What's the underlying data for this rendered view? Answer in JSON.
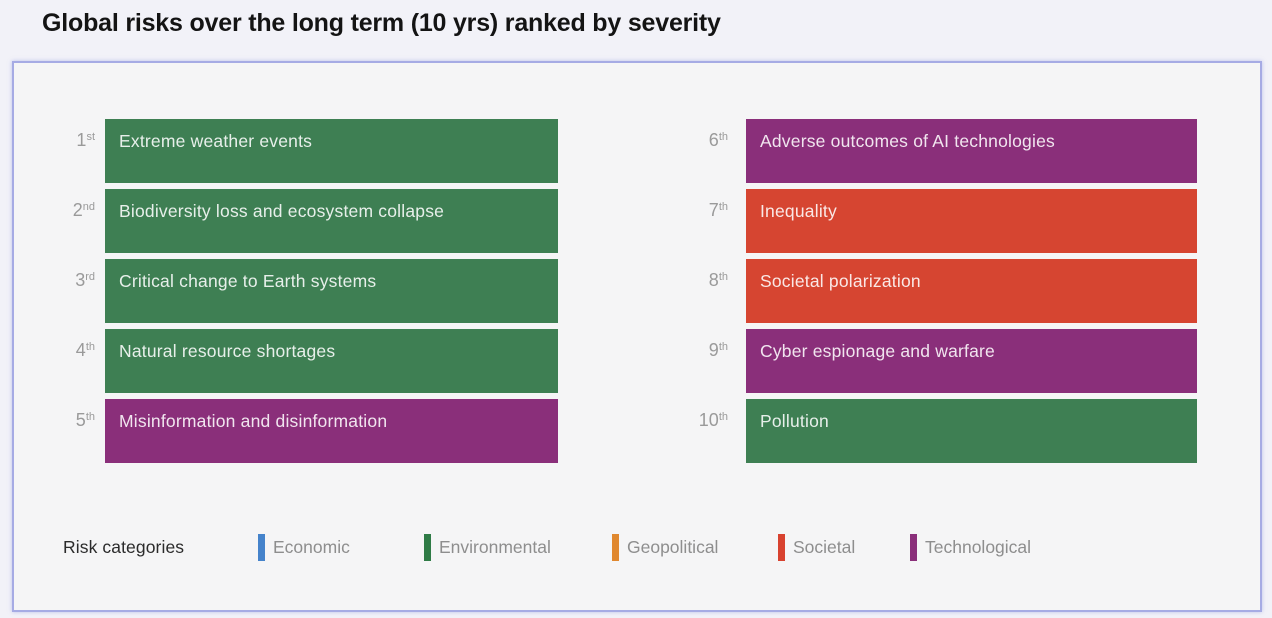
{
  "chart_data": {
    "type": "table",
    "title": "Global risks over the long term (10 yrs) ranked by severity",
    "columns": [
      "rank",
      "risk",
      "category"
    ],
    "rows": [
      {
        "rank": 1,
        "suffix": "st",
        "risk": "Extreme weather events",
        "category": "Environmental",
        "color": "#3e7f53"
      },
      {
        "rank": 2,
        "suffix": "nd",
        "risk": "Biodiversity loss and ecosystem collapse",
        "category": "Environmental",
        "color": "#3e7f53"
      },
      {
        "rank": 3,
        "suffix": "rd",
        "risk": "Critical change to Earth systems",
        "category": "Environmental",
        "color": "#3e7f53"
      },
      {
        "rank": 4,
        "suffix": "th",
        "risk": "Natural resource shortages",
        "category": "Environmental",
        "color": "#3e7f53"
      },
      {
        "rank": 5,
        "suffix": "th",
        "risk": "Misinformation and disinformation",
        "category": "Technological",
        "color": "#8a2f7a"
      },
      {
        "rank": 6,
        "suffix": "th",
        "risk": "Adverse outcomes of AI technologies",
        "category": "Technological",
        "color": "#8a2f7a"
      },
      {
        "rank": 7,
        "suffix": "th",
        "risk": "Inequality",
        "category": "Societal",
        "color": "#d64531"
      },
      {
        "rank": 8,
        "suffix": "th",
        "risk": "Societal polarization",
        "category": "Societal",
        "color": "#d64531"
      },
      {
        "rank": 9,
        "suffix": "th",
        "risk": "Cyber espionage and warfare",
        "category": "Technological",
        "color": "#8a2f7a"
      },
      {
        "rank": 10,
        "suffix": "th",
        "risk": "Pollution",
        "category": "Environmental",
        "color": "#3e7f53"
      }
    ],
    "legend": {
      "title": "Risk categories",
      "items": [
        {
          "label": "Economic",
          "color": "#4583cb"
        },
        {
          "label": "Environmental",
          "color": "#2f7b46"
        },
        {
          "label": "Geopolitical",
          "color": "#e0882f"
        },
        {
          "label": "Societal",
          "color": "#d8422f"
        },
        {
          "label": "Technological",
          "color": "#8a2f7a"
        }
      ]
    },
    "layout_hints": {
      "left_column_ranks": "1-5",
      "right_column_ranks": "6-10",
      "legend_position": "bottom"
    }
  }
}
